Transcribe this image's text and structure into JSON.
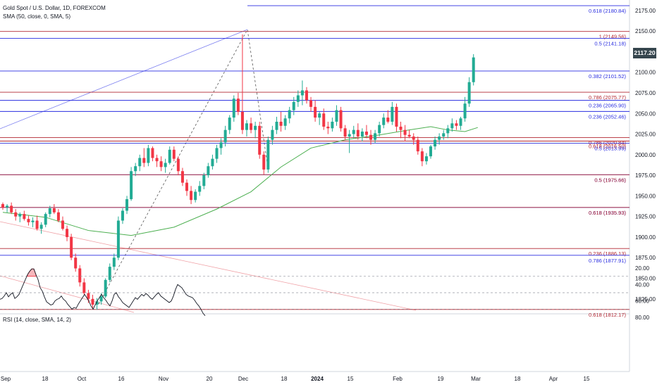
{
  "header": {
    "symbol": "Gold Spot / U.S. Dollar, 1D, FOREXCOM",
    "indicator": "SMA (50, close, 0, SMA, 5)",
    "rsi_label": "RSI (14, close, SMA, 14, 2)",
    "last_price": "2117.20"
  },
  "colors": {
    "up": "#22ab94",
    "down": "#f23645",
    "sma": "#4caf50",
    "rsi": "#131722",
    "fib_red": "#b22833",
    "fib_blue": "#2a2ee0"
  },
  "chart_data": [
    {
      "type": "candlestick",
      "title": "Gold Spot / U.S. Dollar, 1D, FOREXCOM",
      "ylim": [
        1800,
        2185
      ],
      "y_ticks": [
        1825,
        1850,
        1875,
        1900,
        1925,
        1950,
        1975,
        2000,
        2025,
        2050,
        2075,
        2100,
        2125,
        2150,
        2175
      ],
      "x_ticks": [
        "Sep",
        "18",
        "Oct",
        "16",
        "Nov",
        "20",
        "Dec",
        "18",
        "2024",
        "15",
        "Feb",
        "19",
        "Mar",
        "18",
        "Apr",
        "15"
      ],
      "ohlc": [
        [
          1940,
          1942,
          1933,
          1936
        ],
        [
          1936,
          1940,
          1930,
          1938
        ],
        [
          1938,
          1942,
          1928,
          1930
        ],
        [
          1930,
          1934,
          1920,
          1925
        ],
        [
          1925,
          1930,
          1918,
          1928
        ],
        [
          1928,
          1932,
          1920,
          1922
        ],
        [
          1922,
          1926,
          1914,
          1918
        ],
        [
          1918,
          1924,
          1912,
          1920
        ],
        [
          1920,
          1926,
          1908,
          1910
        ],
        [
          1910,
          1918,
          1904,
          1915
        ],
        [
          1915,
          1930,
          1912,
          1928
        ],
        [
          1928,
          1938,
          1924,
          1935
        ],
        [
          1935,
          1940,
          1928,
          1930
        ],
        [
          1930,
          1934,
          1918,
          1920
        ],
        [
          1920,
          1925,
          1908,
          1910
        ],
        [
          1910,
          1914,
          1895,
          1900
        ],
        [
          1900,
          1904,
          1872,
          1875
        ],
        [
          1875,
          1880,
          1858,
          1862
        ],
        [
          1862,
          1866,
          1840,
          1845
        ],
        [
          1845,
          1850,
          1830,
          1832
        ],
        [
          1832,
          1836,
          1820,
          1825
        ],
        [
          1825,
          1830,
          1814,
          1818
        ],
        [
          1818,
          1826,
          1812,
          1822
        ],
        [
          1822,
          1832,
          1818,
          1828
        ],
        [
          1828,
          1850,
          1826,
          1848
        ],
        [
          1848,
          1868,
          1845,
          1864
        ],
        [
          1864,
          1880,
          1860,
          1875
        ],
        [
          1875,
          1925,
          1872,
          1920
        ],
        [
          1920,
          1935,
          1916,
          1932
        ],
        [
          1932,
          1950,
          1928,
          1946
        ],
        [
          1946,
          1985,
          1944,
          1980
        ],
        [
          1980,
          1990,
          1974,
          1986
        ],
        [
          1986,
          2000,
          1980,
          1996
        ],
        [
          1996,
          2008,
          1985,
          1990
        ],
        [
          1990,
          2012,
          1986,
          2008
        ],
        [
          2008,
          2010,
          1992,
          1996
        ],
        [
          1996,
          2000,
          1985,
          1992
        ],
        [
          1992,
          1998,
          1980,
          1985
        ],
        [
          1985,
          1995,
          1978,
          1990
        ],
        [
          1990,
          2010,
          1988,
          2006
        ],
        [
          2006,
          2010,
          1992,
          1995
        ],
        [
          1995,
          1998,
          1975,
          1980
        ],
        [
          1980,
          1984,
          1962,
          1966
        ],
        [
          1966,
          1970,
          1950,
          1956
        ],
        [
          1956,
          1962,
          1940,
          1945
        ],
        [
          1945,
          1958,
          1942,
          1955
        ],
        [
          1955,
          1968,
          1950,
          1962
        ],
        [
          1962,
          1978,
          1958,
          1975
        ],
        [
          1975,
          1990,
          1972,
          1986
        ],
        [
          1986,
          2000,
          1982,
          1995
        ],
        [
          1995,
          2012,
          1990,
          2008
        ],
        [
          2008,
          2020,
          2000,
          2015
        ],
        [
          2015,
          2035,
          2010,
          2030
        ],
        [
          2030,
          2048,
          2025,
          2045
        ],
        [
          2045,
          2072,
          2040,
          2068
        ],
        [
          2068,
          2075,
          2048,
          2052
        ],
        [
          2052,
          2146,
          2025,
          2030
        ],
        [
          2030,
          2042,
          2022,
          2038
        ],
        [
          2038,
          2045,
          2026,
          2030
        ],
        [
          2030,
          2040,
          2020,
          2035
        ],
        [
          2035,
          2040,
          1995,
          2000
        ],
        [
          2000,
          2004,
          1976,
          1982
        ],
        [
          1982,
          2022,
          1978,
          2018
        ],
        [
          2018,
          2035,
          2012,
          2030
        ],
        [
          2030,
          2046,
          2025,
          2040
        ],
        [
          2040,
          2052,
          2028,
          2035
        ],
        [
          2035,
          2048,
          2030,
          2044
        ],
        [
          2044,
          2058,
          2038,
          2054
        ],
        [
          2054,
          2070,
          2048,
          2064
        ],
        [
          2064,
          2078,
          2058,
          2072
        ],
        [
          2072,
          2090,
          2060,
          2078
        ],
        [
          2078,
          2082,
          2062,
          2066
        ],
        [
          2066,
          2070,
          2052,
          2058
        ],
        [
          2058,
          2066,
          2040,
          2045
        ],
        [
          2045,
          2052,
          2036,
          2050
        ],
        [
          2050,
          2056,
          2030,
          2034
        ],
        [
          2034,
          2040,
          2025,
          2032
        ],
        [
          2032,
          2045,
          2028,
          2040
        ],
        [
          2040,
          2060,
          2035,
          2054
        ],
        [
          2054,
          2058,
          2028,
          2032
        ],
        [
          2032,
          2036,
          2018,
          2022
        ],
        [
          2022,
          2030,
          2002,
          2025
        ],
        [
          2025,
          2035,
          2020,
          2030
        ],
        [
          2030,
          2038,
          2018,
          2022
        ],
        [
          2022,
          2032,
          2016,
          2028
        ],
        [
          2028,
          2036,
          2020,
          2024
        ],
        [
          2024,
          2030,
          2012,
          2018
        ],
        [
          2018,
          2030,
          2014,
          2026
        ],
        [
          2026,
          2040,
          2022,
          2036
        ],
        [
          2036,
          2050,
          2032,
          2045
        ],
        [
          2045,
          2054,
          2038,
          2040
        ],
        [
          2040,
          2064,
          2036,
          2058
        ],
        [
          2058,
          2062,
          2028,
          2034
        ],
        [
          2034,
          2040,
          2020,
          2030
        ],
        [
          2030,
          2036,
          2016,
          2024
        ],
        [
          2024,
          2030,
          2020,
          2022
        ],
        [
          2022,
          2026,
          2012,
          2018
        ],
        [
          2018,
          2022,
          2000,
          2004
        ],
        [
          2004,
          2008,
          1986,
          1992
        ],
        [
          1992,
          2002,
          1988,
          1998
        ],
        [
          1998,
          2012,
          1995,
          2010
        ],
        [
          2010,
          2022,
          2006,
          2018
        ],
        [
          2018,
          2026,
          2012,
          2022
        ],
        [
          2022,
          2030,
          2018,
          2026
        ],
        [
          2026,
          2036,
          2020,
          2032
        ],
        [
          2032,
          2044,
          2028,
          2038
        ],
        [
          2038,
          2042,
          2030,
          2035
        ],
        [
          2035,
          2046,
          2030,
          2044
        ],
        [
          2044,
          2070,
          2040,
          2062
        ],
        [
          2062,
          2094,
          2058,
          2088
        ],
        [
          2088,
          2122,
          2084,
          2118
        ]
      ],
      "sma_50": [
        [
          0,
          1930
        ],
        [
          10,
          1924
        ],
        [
          20,
          1908
        ],
        [
          30,
          1902
        ],
        [
          40,
          1912
        ],
        [
          50,
          1934
        ],
        [
          58,
          1955
        ],
        [
          65,
          1985
        ],
        [
          72,
          2008
        ],
        [
          80,
          2018
        ],
        [
          88,
          2024
        ],
        [
          95,
          2030
        ],
        [
          100,
          2034
        ],
        [
          104,
          2030
        ],
        [
          108,
          2028
        ],
        [
          111,
          2033
        ]
      ],
      "fib_levels": [
        {
          "label": "0.618 (2180.84)",
          "value": 2180.84,
          "color": "#2a2ee0"
        },
        {
          "label": "1 (2149.56)",
          "value": 2149.56,
          "color": "#b22833"
        },
        {
          "label": "0.5 (2141.18)",
          "value": 2141.18,
          "color": "#2a2ee0"
        },
        {
          "label": "0.382 (2101.52)",
          "value": 2101.52,
          "color": "#2a2ee0"
        },
        {
          "label": "0.786 (2075.77)",
          "value": 2075.77,
          "color": "#b22833"
        },
        {
          "label": "0.236 (2065.90)",
          "value": 2065.9,
          "color": "#2a2ee0"
        },
        {
          "label": "0.236 (2052.46)",
          "value": 2052.46,
          "color": "#2a2ee0"
        },
        {
          "label": "0.786 (2020.84)",
          "value": 2020.84,
          "color": "#b22833"
        },
        {
          "label": "0.618 (2016.50)",
          "value": 2016.5,
          "color": "#b22833"
        },
        {
          "label": "0.5 (2013.99)",
          "value": 2013.99,
          "color": "#2a2ee0"
        },
        {
          "label": "0.5 (1975.66)",
          "value": 1975.66,
          "color": "#2a2ee0"
        },
        {
          "label": "0.5 (1975.66)",
          "value": 1975.66,
          "color": "#b22833"
        },
        {
          "label": "0.618 (1935.93)",
          "value": 1935.93,
          "color": "#2a2ee0"
        },
        {
          "label": "0.618 (1935.93)",
          "value": 1935.93,
          "color": "#b22833"
        },
        {
          "label": "0.236 (1886.13)",
          "value": 1886.13,
          "color": "#b22833"
        },
        {
          "label": "0.786 (1877.91)",
          "value": 1877.91,
          "color": "#2a2ee0"
        },
        {
          "label": "0.618 (1812.17)",
          "value": 1812.17,
          "color": "#b22833"
        }
      ]
    },
    {
      "type": "line",
      "title": "RSI (14, close, SMA, 14, 2)",
      "ylim": [
        15,
        85
      ],
      "y_ticks": [
        80,
        60,
        40,
        20
      ],
      "bands": [
        70,
        50,
        30
      ],
      "values": [
        [
          0,
          58
        ],
        [
          3,
          57
        ],
        [
          6,
          54
        ],
        [
          9,
          50
        ],
        [
          12,
          55
        ],
        [
          15,
          52
        ],
        [
          18,
          50
        ],
        [
          21,
          57
        ],
        [
          24,
          55
        ],
        [
          27,
          52
        ],
        [
          30,
          46
        ],
        [
          33,
          40
        ],
        [
          36,
          34
        ],
        [
          39,
          28
        ],
        [
          42,
          24
        ],
        [
          45,
          21
        ],
        [
          48,
          21
        ],
        [
          51,
          28
        ],
        [
          54,
          34
        ],
        [
          57,
          44
        ],
        [
          60,
          48
        ],
        [
          63,
          55
        ],
        [
          66,
          61
        ],
        [
          69,
          63
        ],
        [
          72,
          65
        ],
        [
          75,
          64
        ],
        [
          78,
          60
        ],
        [
          81,
          58
        ],
        [
          84,
          57
        ],
        [
          87,
          54
        ],
        [
          90,
          58
        ],
        [
          93,
          60
        ],
        [
          96,
          64
        ],
        [
          99,
          67
        ],
        [
          102,
          70
        ],
        [
          105,
          68
        ],
        [
          108,
          69
        ],
        [
          111,
          64
        ],
        [
          114,
          60
        ],
        [
          117,
          56
        ],
        [
          120,
          52
        ],
        [
          123,
          56
        ],
        [
          126,
          60
        ],
        [
          129,
          66
        ],
        [
          132,
          70
        ],
        [
          135,
          65
        ],
        [
          138,
          60
        ],
        [
          141,
          56
        ],
        [
          144,
          52
        ],
        [
          147,
          56
        ],
        [
          150,
          59
        ],
        [
          153,
          63
        ],
        [
          156,
          66
        ],
        [
          159,
          60
        ],
        [
          162,
          52
        ],
        [
          165,
          50
        ],
        [
          168,
          55
        ],
        [
          171,
          58
        ],
        [
          174,
          62
        ],
        [
          177,
          64
        ],
        [
          180,
          66
        ],
        [
          183,
          68
        ],
        [
          186,
          64
        ],
        [
          189,
          60
        ],
        [
          192,
          56
        ],
        [
          195,
          58
        ],
        [
          198,
          55
        ],
        [
          201,
          52
        ],
        [
          204,
          54
        ],
        [
          207,
          51
        ],
        [
          210,
          53
        ],
        [
          213,
          56
        ],
        [
          216,
          58
        ],
        [
          219,
          55
        ],
        [
          222,
          52
        ],
        [
          225,
          50
        ],
        [
          228,
          54
        ],
        [
          231,
          56
        ],
        [
          234,
          58
        ],
        [
          237,
          60
        ],
        [
          240,
          62
        ],
        [
          243,
          60
        ],
        [
          246,
          54
        ],
        [
          249,
          46
        ],
        [
          252,
          40
        ],
        [
          255,
          42
        ],
        [
          258,
          44
        ],
        [
          261,
          48
        ],
        [
          264,
          52
        ],
        [
          267,
          54
        ],
        [
          270,
          55
        ],
        [
          273,
          56
        ],
        [
          276,
          59
        ],
        [
          279,
          63
        ],
        [
          282,
          66
        ],
        [
          285,
          70
        ],
        [
          288,
          75
        ],
        [
          291,
          78
        ]
      ]
    }
  ]
}
